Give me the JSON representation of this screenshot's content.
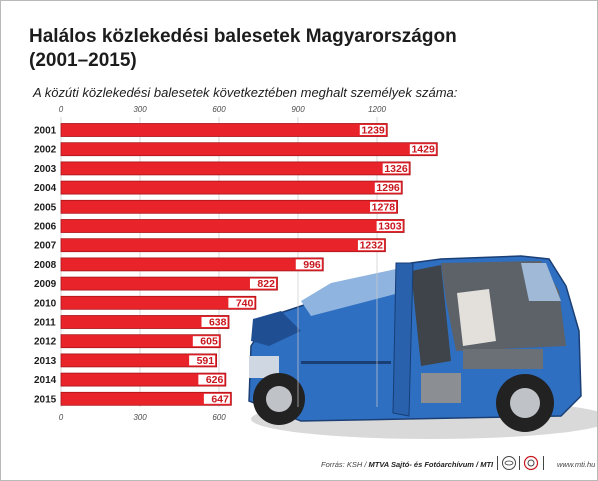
{
  "header": {
    "title": "Halálos közlekedési balesetek Magyarországon (2001–2015)",
    "subtitle": "A közúti közlekedési balesetek következtében meghalt személyek száma:"
  },
  "footer": {
    "source_prefix": "Forrás: KSH / ",
    "source_agency": "MTVA Sajtó- és Fotóarchívum / MTI",
    "url": "www.mti.hu"
  },
  "colors": {
    "bar_fill": "#e8232a",
    "bar_border": "#a8141a",
    "label_box": "#ffffff",
    "label_text": "#c8161d",
    "car_body": "#2f6fc2"
  },
  "icons": [
    "mti-eye-logo",
    "mtva-logo",
    "smashed-car-photo"
  ],
  "chart_data": {
    "type": "bar",
    "orientation": "horizontal",
    "categories": [
      "2001",
      "2002",
      "2003",
      "2004",
      "2005",
      "2006",
      "2007",
      "2008",
      "2009",
      "2010",
      "2011",
      "2012",
      "2013",
      "2014",
      "2015"
    ],
    "values": [
      1239,
      1429,
      1326,
      1296,
      1278,
      1303,
      1232,
      996,
      822,
      740,
      638,
      605,
      591,
      626,
      647
    ],
    "xlim": [
      0,
      1500
    ],
    "xticks": [
      0,
      300,
      600,
      900,
      1200
    ],
    "bottom_xticks": [
      0,
      300,
      600
    ],
    "grid": true,
    "legend": "none",
    "title": "Halálos közlekedési balesetek Magyarországon (2001–2015)",
    "subtitle": "A közúti közlekedési balesetek következtében meghalt személyek száma:"
  }
}
